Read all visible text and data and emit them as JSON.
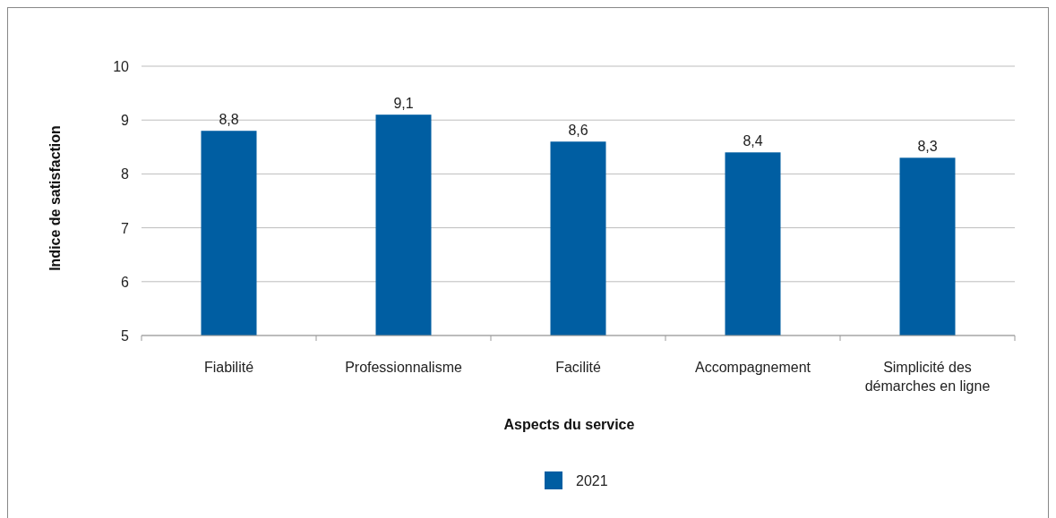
{
  "chart_data": {
    "type": "bar",
    "xlabel": "Aspects du service",
    "ylabel": "Indice de satisfaction",
    "categories": [
      "Fiabilité",
      "Professionnalisme",
      "Facilité",
      "Accompagnement",
      "Simplicité des démarches en ligne"
    ],
    "series": [
      {
        "name": "2021",
        "color": "#005ea2",
        "values": [
          8.8,
          9.1,
          8.6,
          8.4,
          8.3
        ],
        "value_labels": [
          "8,8",
          "9,1",
          "8,6",
          "8,4",
          "8,3"
        ]
      }
    ],
    "ylim": [
      5,
      10
    ],
    "yticks": [
      5,
      6,
      7,
      8,
      9,
      10
    ],
    "grid": "y",
    "legend": "bottom"
  }
}
